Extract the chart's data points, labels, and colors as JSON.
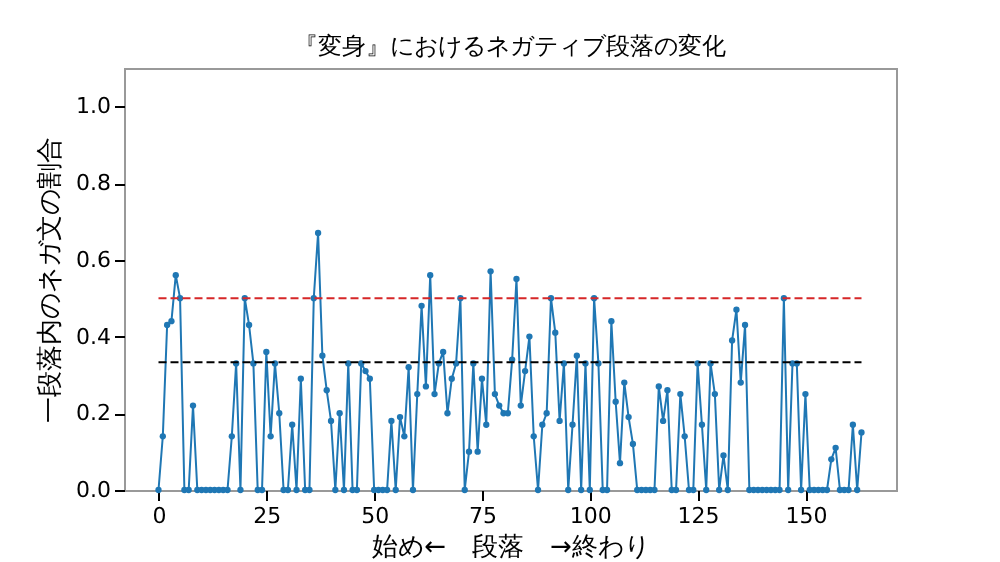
{
  "chart_data": {
    "type": "line",
    "title": "『変身』におけるネガティブ段落の変化",
    "xlabel": "始め←　段落　→終わり",
    "ylabel": "一段落内のネガ文の割合",
    "x": [
      0,
      1,
      2,
      3,
      4,
      5,
      6,
      7,
      8,
      9,
      10,
      11,
      12,
      13,
      14,
      15,
      16,
      17,
      18,
      19,
      20,
      21,
      22,
      23,
      24,
      25,
      26,
      27,
      28,
      29,
      30,
      31,
      32,
      33,
      34,
      35,
      36,
      37,
      38,
      39,
      40,
      41,
      42,
      43,
      44,
      45,
      46,
      47,
      48,
      49,
      50,
      51,
      52,
      53,
      54,
      55,
      56,
      57,
      58,
      59,
      60,
      61,
      62,
      63,
      64,
      65,
      66,
      67,
      68,
      69,
      70,
      71,
      72,
      73,
      74,
      75,
      76,
      77,
      78,
      79,
      80,
      81,
      82,
      83,
      84,
      85,
      86,
      87,
      88,
      89,
      90,
      91,
      92,
      93,
      94,
      95,
      96,
      97,
      98,
      99,
      100,
      101,
      102,
      103,
      104,
      105,
      106,
      107,
      108,
      109,
      110,
      111,
      112,
      113,
      114,
      115,
      116,
      117,
      118,
      119,
      120,
      121,
      122,
      123,
      124,
      125,
      126,
      127,
      128,
      129,
      130,
      131,
      132,
      133,
      134,
      135,
      136,
      137,
      138,
      139,
      140,
      141,
      142,
      143,
      144,
      145,
      146,
      147,
      148,
      149,
      150,
      151,
      152,
      153,
      154,
      155,
      156,
      157,
      158,
      159,
      160,
      161,
      162,
      163
    ],
    "series": [
      {
        "color": "#1f77b4",
        "values": [
          0,
          0.14,
          0.43,
          0.44,
          0.56,
          0.5,
          0,
          0,
          0.22,
          0,
          0,
          0,
          0,
          0,
          0,
          0,
          0,
          0.14,
          0.33,
          0,
          0.5,
          0.43,
          0.33,
          0,
          0,
          0.36,
          0.14,
          0.33,
          0.2,
          0,
          0,
          0.17,
          0,
          0.29,
          0,
          0,
          0.5,
          0.67,
          0.35,
          0.26,
          0.18,
          0,
          0.2,
          0,
          0.33,
          0,
          0,
          0.33,
          0.31,
          0.29,
          0,
          0,
          0,
          0,
          0.18,
          0,
          0.19,
          0.14,
          0.32,
          0,
          0.25,
          0.48,
          0.27,
          0.56,
          0.25,
          0.33,
          0.36,
          0.2,
          0.29,
          0.33,
          0.5,
          0,
          0.1,
          0.33,
          0.1,
          0.29,
          0.17,
          0.57,
          0.25,
          0.22,
          0.2,
          0.2,
          0.34,
          0.55,
          0.22,
          0.31,
          0.4,
          0.14,
          0,
          0.17,
          0.2,
          0.5,
          0.41,
          0.18,
          0.33,
          0,
          0.17,
          0.35,
          0,
          0.33,
          0,
          0.5,
          0.33,
          0,
          0,
          0.44,
          0.23,
          0.07,
          0.28,
          0.19,
          0.12,
          0,
          0,
          0,
          0,
          0,
          0.27,
          0.18,
          0.26,
          0,
          0,
          0.25,
          0.14,
          0,
          0,
          0.33,
          0.17,
          0,
          0.33,
          0.25,
          0,
          0.09,
          0,
          0.39,
          0.47,
          0.28,
          0.43,
          0,
          0,
          0,
          0,
          0,
          0,
          0,
          0,
          0.5,
          0,
          0.33,
          0.33,
          0,
          0.25,
          0,
          0,
          0,
          0,
          0,
          0.08,
          0.11,
          0,
          0,
          0,
          0.17,
          0,
          0.15
        ]
      }
    ],
    "xlim": [
      -8,
      171
    ],
    "ylim": [
      0,
      1.1
    ],
    "xticks": [
      0,
      25,
      50,
      75,
      100,
      125,
      150
    ],
    "yticks": [
      {
        "value": 0,
        "label": "0.0"
      },
      {
        "value": 0.2,
        "label": "0.2"
      },
      {
        "value": 0.4,
        "label": "0.4"
      },
      {
        "value": 0.6,
        "label": "0.6"
      },
      {
        "value": 0.8,
        "label": "0.8"
      },
      {
        "value": 1,
        "label": "1.0"
      }
    ],
    "ref_lines": [
      {
        "axis": "y",
        "value": 0.5,
        "color": "#d62728",
        "line_style": "dashed"
      },
      {
        "axis": "y",
        "value": 0.333,
        "color": "#000000",
        "line_style": "dashed"
      }
    ],
    "marker": "circle",
    "line_style": "solid"
  }
}
